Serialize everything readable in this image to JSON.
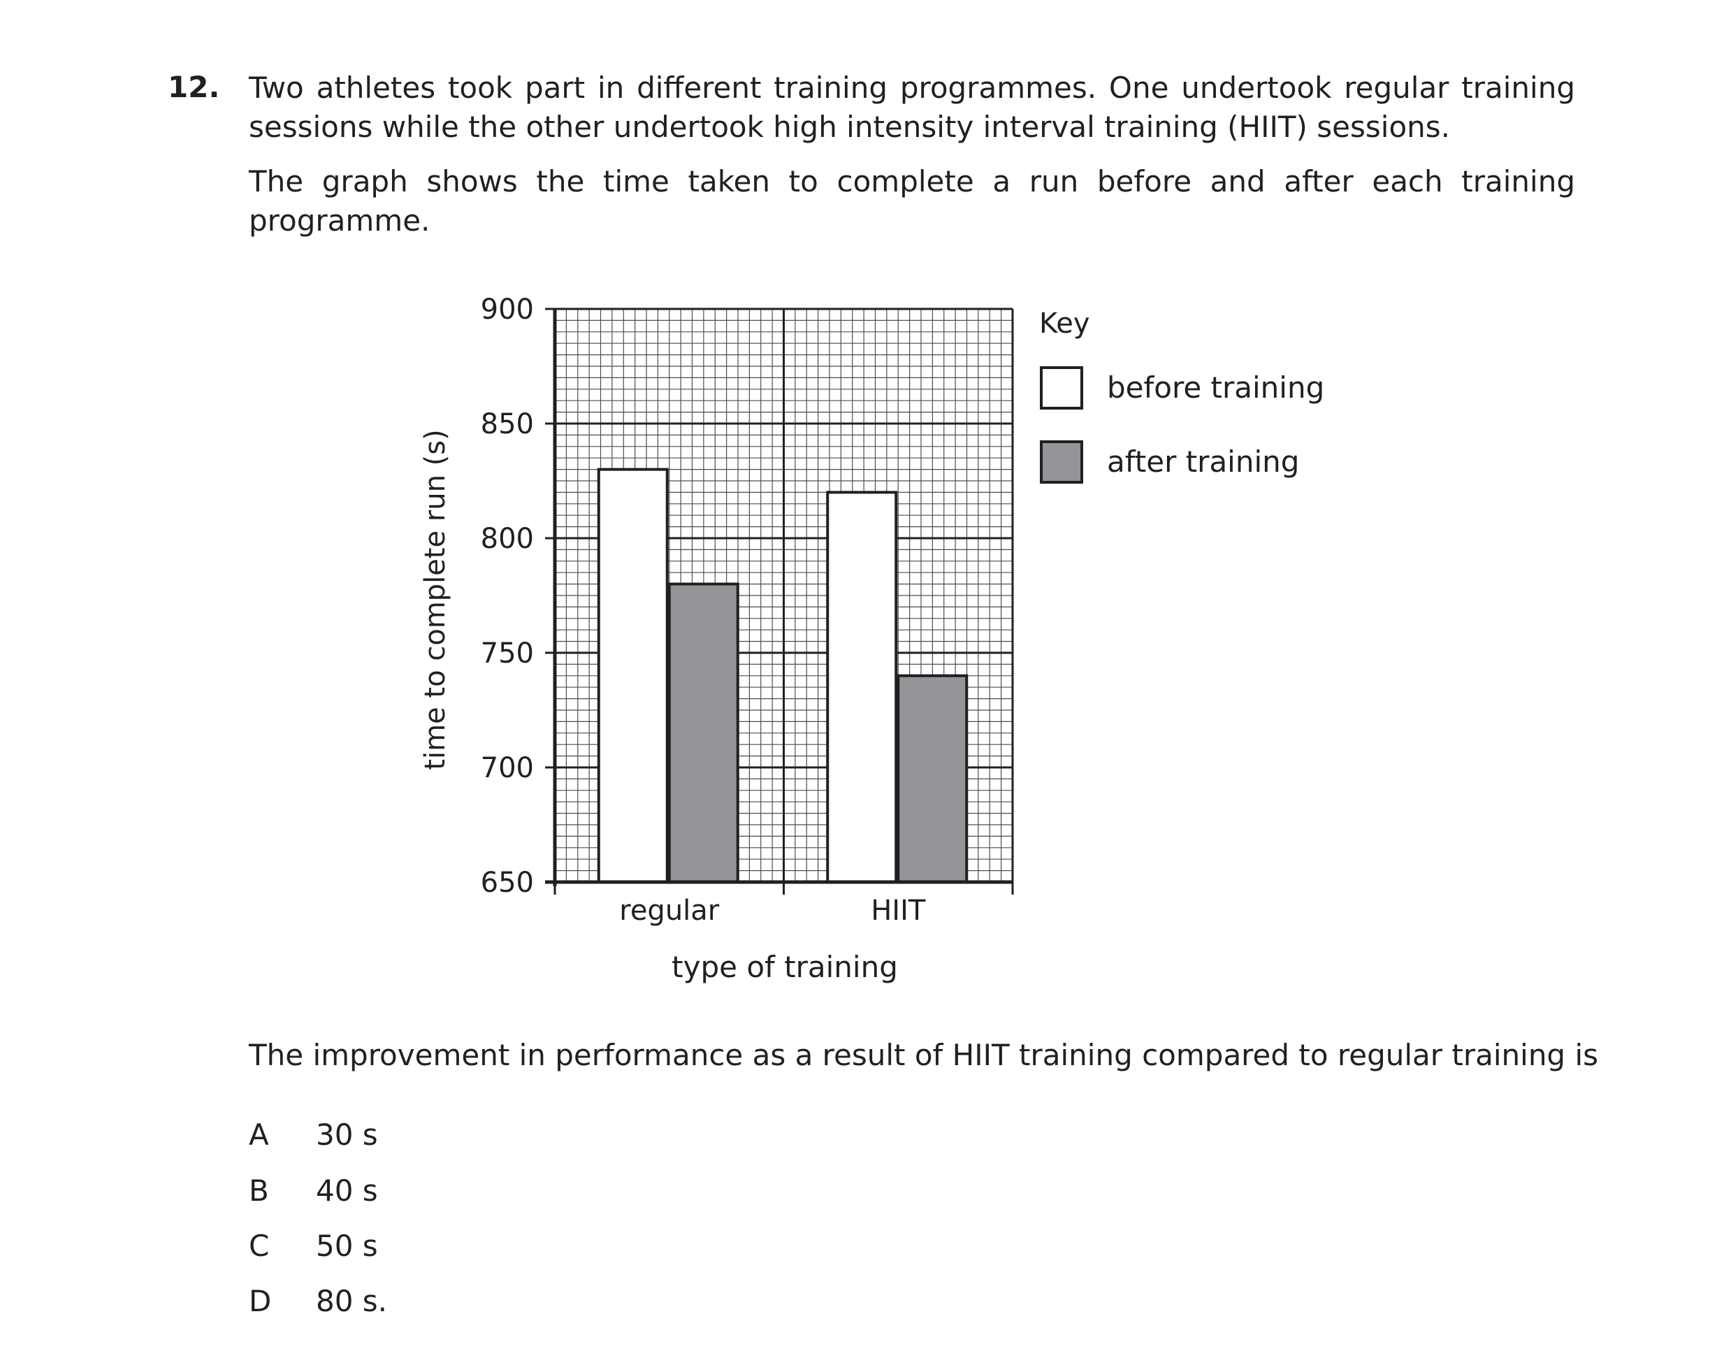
{
  "question": {
    "number": "12.",
    "intro": "Two athletes took part in different training programmes. One undertook regular training sessions while the other undertook high intensity interval training (HIIT) sessions.",
    "graph_intro": "The graph shows the time taken to complete a run before and after each training programme.",
    "prompt": "The improvement in performance as a result of HIIT training compared to regular training is",
    "options": [
      {
        "letter": "A",
        "text": "30 s"
      },
      {
        "letter": "B",
        "text": "40 s"
      },
      {
        "letter": "C",
        "text": "50 s"
      },
      {
        "letter": "D",
        "text": "80 s."
      }
    ]
  },
  "chart_data": {
    "type": "bar",
    "xlabel": "type of training",
    "ylabel": "time to complete run (s)",
    "ylim": [
      650,
      900
    ],
    "yticks": [
      650,
      700,
      750,
      800,
      850,
      900
    ],
    "categories": [
      "regular",
      "HIIT"
    ],
    "series": [
      {
        "name": "before training",
        "values": [
          830,
          820
        ],
        "color": "#ffffff"
      },
      {
        "name": "after training",
        "values": [
          780,
          740
        ],
        "color": "#939598"
      }
    ],
    "legend_title": "Key",
    "legend_position": "right",
    "grid": true
  }
}
